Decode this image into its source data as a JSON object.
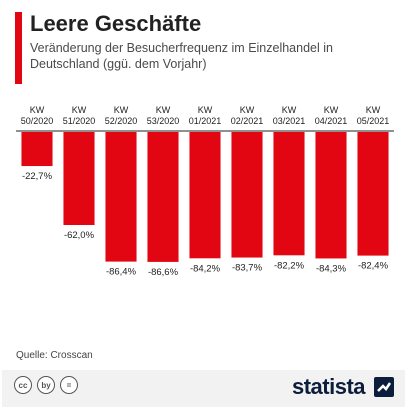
{
  "header": {
    "title": "Leere Geschäfte",
    "subtitle": "Veränderung der Besucherfrequenz im Einzelhandel in Deutschland (ggü. dem Vorjahr)"
  },
  "source": "Quelle: Crosscan",
  "footer": {
    "brand": "statista",
    "license_icons": [
      "cc",
      "by",
      "="
    ]
  },
  "colors": {
    "accent": "#e20613",
    "bar": "#e20613",
    "text": "#222222",
    "brand": "#0d1e3d"
  },
  "chart_data": {
    "type": "bar",
    "categories": [
      "KW\n50/2020",
      "KW\n51/2020",
      "KW\n52/2020",
      "KW\n53/2020",
      "KW\n01/2021",
      "KW\n02/2021",
      "KW\n03/2021",
      "KW\n04/2021",
      "KW\n05/2021"
    ],
    "values": [
      -22.7,
      -62.0,
      -86.4,
      -86.6,
      -84.2,
      -83.7,
      -82.2,
      -84.3,
      -82.4
    ],
    "value_labels": [
      "-22,7%",
      "-62,0%",
      "-86,4%",
      "-86,6%",
      "-84,2%",
      "-83,7%",
      "-82,2%",
      "-84,3%",
      "-82,4%"
    ],
    "ylim": [
      -100,
      0
    ],
    "grid": false,
    "title": "",
    "xlabel": "",
    "ylabel": ""
  }
}
